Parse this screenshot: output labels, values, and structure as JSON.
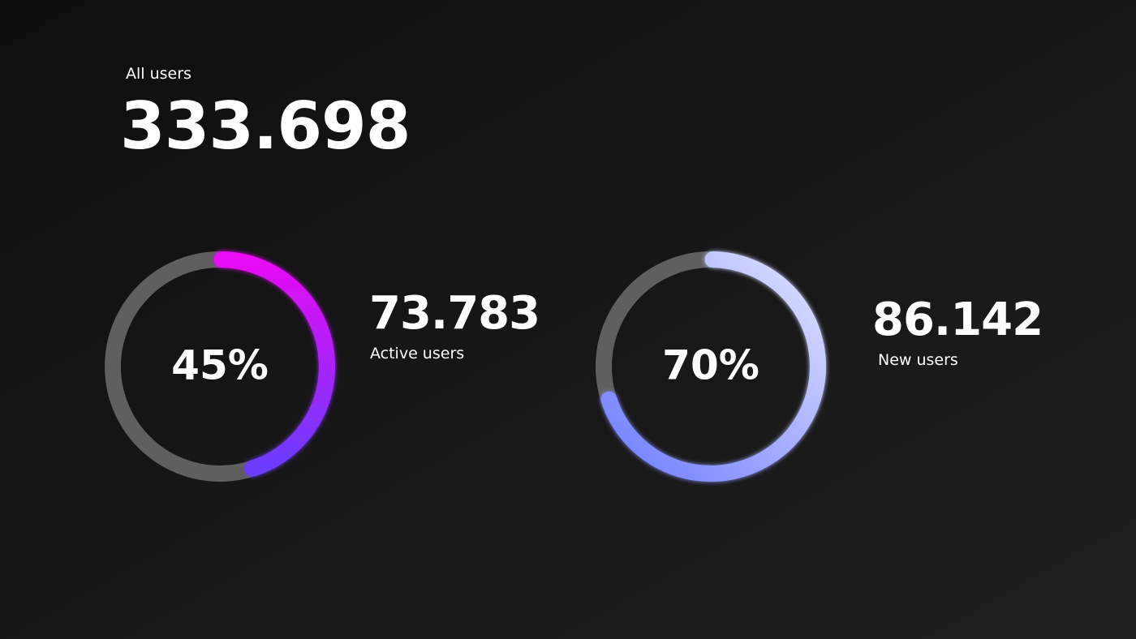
{
  "header": {
    "label": "All users",
    "count": "333.698"
  },
  "scale": [
    0,
    100
  ],
  "gauges": [
    {
      "percent": 45,
      "percent_label": "45%",
      "count": "73.783",
      "label": "Active users",
      "colors": [
        "#e80af4",
        "#6a3cff"
      ],
      "track_color": "#5f5f5f"
    },
    {
      "percent": 70,
      "percent_label": "70%",
      "count": "86.142",
      "label": "New users",
      "colors": [
        "#dfe2ff",
        "#6f7cff"
      ],
      "track_color": "#5f5f5f"
    }
  ]
}
